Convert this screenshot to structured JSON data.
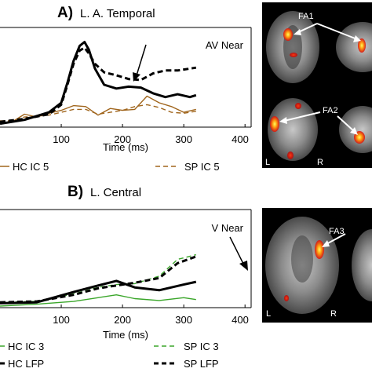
{
  "panels": {
    "a": {
      "letter": "A)",
      "region": "L. A. Temporal",
      "condition": "AV Near",
      "xlabel": "Time (ms)",
      "ticks": [
        "100",
        "200",
        "300",
        "400"
      ],
      "legend": [
        {
          "label": "HC IC 5",
          "color": "#a0651c",
          "style": "solid"
        },
        {
          "label": "SP IC 5",
          "color": "#a0651c",
          "style": "dashed"
        }
      ],
      "brain_labels": {
        "fa1": "FA1",
        "fa2": "FA2",
        "left": "L",
        "right": "R"
      }
    },
    "b": {
      "letter": "B)",
      "region": "L. Central",
      "condition": "V Near",
      "xlabel": "Time (ms)",
      "ticks": [
        "100",
        "200",
        "300",
        "400"
      ],
      "legend": [
        {
          "label": "HC IC 3",
          "color": "#3aa62a",
          "style": "solid"
        },
        {
          "label": "SP IC 3",
          "color": "#3aa62a",
          "style": "dashed"
        },
        {
          "label": "HC LFP",
          "color": "#000000",
          "style": "solid"
        },
        {
          "label": "SP LFP",
          "color": "#000000",
          "style": "dashed"
        }
      ],
      "brain_labels": {
        "fa3": "FA3",
        "left": "L",
        "right": "R"
      }
    }
  },
  "chart_data": [
    {
      "type": "line",
      "xlim": [
        0,
        410
      ],
      "ylim": [
        0,
        10
      ],
      "grid": false,
      "series": [
        {
          "name": "HC LFP",
          "color": "#000000",
          "style": "solid",
          "x": [
            0,
            40,
            80,
            100,
            110,
            120,
            130,
            138,
            145,
            155,
            170,
            190,
            210,
            230,
            250,
            270,
            290,
            310,
            320
          ],
          "y": [
            0.2,
            0.6,
            1.4,
            2.4,
            4.5,
            6.8,
            8.4,
            8.8,
            8.0,
            6.0,
            4.3,
            3.9,
            4.1,
            4.0,
            3.4,
            3.0,
            3.3,
            3.0,
            3.2
          ]
        },
        {
          "name": "SP LFP",
          "color": "#000000",
          "style": "dashed",
          "x": [
            0,
            40,
            80,
            100,
            110,
            120,
            130,
            138,
            145,
            155,
            170,
            190,
            210,
            230,
            250,
            270,
            290,
            310,
            320
          ],
          "y": [
            0.4,
            0.7,
            1.2,
            2.2,
            4.3,
            6.5,
            7.9,
            8.2,
            7.6,
            6.5,
            5.6,
            5.3,
            4.9,
            4.8,
            5.5,
            5.8,
            5.8,
            6.0,
            6.1
          ]
        },
        {
          "name": "HC IC 5",
          "color": "#a0651c",
          "style": "solid",
          "x": [
            0,
            20,
            40,
            60,
            80,
            100,
            120,
            140,
            160,
            180,
            200,
            220,
            240,
            260,
            280,
            300,
            320
          ],
          "y": [
            0.2,
            0.4,
            1.2,
            0.9,
            1.3,
            1.6,
            2.1,
            2.0,
            1.1,
            1.8,
            1.6,
            1.7,
            3.1,
            2.4,
            2.0,
            1.4,
            1.7
          ]
        },
        {
          "name": "SP IC 5",
          "color": "#a0651c",
          "style": "dashed",
          "x": [
            0,
            20,
            40,
            60,
            80,
            100,
            120,
            140,
            160,
            180,
            200,
            220,
            240,
            260,
            280,
            300,
            320
          ],
          "y": [
            0.5,
            0.5,
            0.9,
            1.0,
            1.1,
            1.4,
            1.7,
            1.7,
            1.2,
            1.4,
            1.6,
            2.0,
            2.2,
            1.9,
            1.4,
            1.3,
            1.5
          ]
        }
      ]
    },
    {
      "type": "line",
      "xlim": [
        0,
        410
      ],
      "ylim": [
        0,
        10
      ],
      "grid": false,
      "series": [
        {
          "name": "HC LFP",
          "color": "#000000",
          "style": "solid",
          "x": [
            0,
            60,
            120,
            160,
            190,
            220,
            260,
            300,
            320
          ],
          "y": [
            0.3,
            0.4,
            1.5,
            2.2,
            2.7,
            2.0,
            1.7,
            2.3,
            2.6
          ]
        },
        {
          "name": "SP LFP",
          "color": "#000000",
          "style": "dashed",
          "x": [
            0,
            60,
            120,
            160,
            190,
            220,
            260,
            290,
            320
          ],
          "y": [
            0.4,
            0.5,
            1.2,
            1.9,
            2.2,
            2.5,
            3.0,
            4.6,
            5.3
          ]
        },
        {
          "name": "HC IC 3",
          "color": "#3aa62a",
          "style": "solid",
          "x": [
            0,
            60,
            120,
            160,
            190,
            220,
            260,
            300,
            320
          ],
          "y": [
            0.0,
            0.2,
            0.5,
            0.9,
            1.2,
            0.8,
            0.6,
            0.9,
            0.7
          ]
        },
        {
          "name": "SP IC 3",
          "color": "#3aa62a",
          "style": "dashed",
          "x": [
            0,
            60,
            120,
            160,
            190,
            220,
            260,
            290,
            320
          ],
          "y": [
            0.4,
            0.5,
            1.3,
            2.0,
            2.3,
            2.4,
            3.2,
            5.0,
            5.5
          ]
        }
      ]
    }
  ]
}
